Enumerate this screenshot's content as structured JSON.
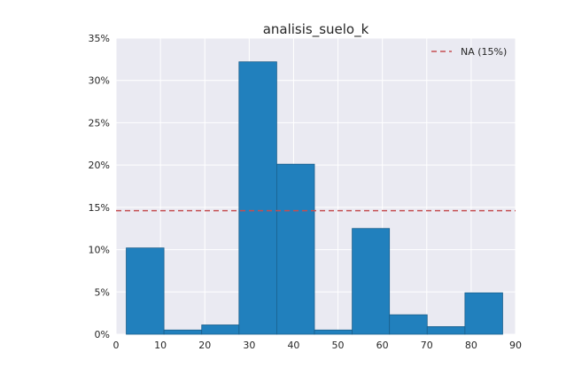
{
  "chart_data": {
    "type": "bar",
    "title": "analisis_suelo_k",
    "xlabel": "",
    "ylabel": "",
    "xlim": [
      0,
      90
    ],
    "ylim": [
      0,
      35
    ],
    "x_ticks": [
      0,
      10,
      20,
      30,
      40,
      50,
      60,
      70,
      80,
      90
    ],
    "y_ticks": [
      0,
      5,
      10,
      15,
      20,
      25,
      30,
      35
    ],
    "y_tick_format": "percent",
    "grid": true,
    "legend_position": "top-right",
    "bars": [
      {
        "x_start": 2.3,
        "x_end": 10.8,
        "value": 10.2
      },
      {
        "x_start": 10.8,
        "x_end": 19.3,
        "value": 0.5
      },
      {
        "x_start": 19.3,
        "x_end": 27.7,
        "value": 1.1
      },
      {
        "x_start": 27.7,
        "x_end": 36.2,
        "value": 32.2
      },
      {
        "x_start": 36.2,
        "x_end": 44.7,
        "value": 20.1
      },
      {
        "x_start": 44.7,
        "x_end": 53.2,
        "value": 0.5
      },
      {
        "x_start": 53.2,
        "x_end": 61.6,
        "value": 12.5
      },
      {
        "x_start": 61.6,
        "x_end": 70.1,
        "value": 2.3
      },
      {
        "x_start": 70.1,
        "x_end": 78.6,
        "value": 0.9
      },
      {
        "x_start": 78.6,
        "x_end": 87.1,
        "value": 4.9
      }
    ],
    "reference_line": {
      "value": 14.6,
      "label": "NA (15%)",
      "color": "#c44e52",
      "style": "dashed"
    },
    "colors": {
      "bar": "#2180bd",
      "bar_edge": "#1a5f8c",
      "plot_bg": "#eaeaf2",
      "grid": "#ffffff"
    }
  }
}
